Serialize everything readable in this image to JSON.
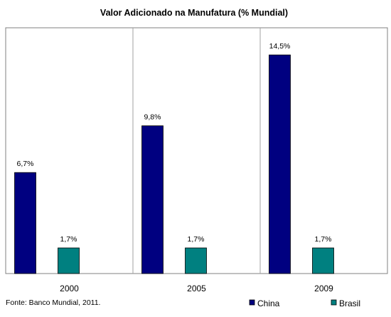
{
  "chart_data": {
    "type": "bar",
    "title": "Valor Adicionado na Manufatura (% Mundial)",
    "categories": [
      "2000",
      "2005",
      "2009"
    ],
    "series": [
      {
        "name": "China",
        "values": [
          6.7,
          9.8,
          14.5
        ],
        "labels": [
          "6,7%",
          "9,8%",
          "14,5%"
        ],
        "color": "#000080"
      },
      {
        "name": "Brasil",
        "values": [
          1.7,
          1.7,
          1.7
        ],
        "labels": [
          "1,7%",
          "1,7%",
          "1,7%"
        ],
        "color": "#008080"
      }
    ],
    "ylim": [
      0,
      16.3
    ],
    "grid": false,
    "legend_position": "bottom-right",
    "xlabel": "",
    "ylabel": ""
  },
  "source_note": "Fonte: Banco Mundial, 2011."
}
